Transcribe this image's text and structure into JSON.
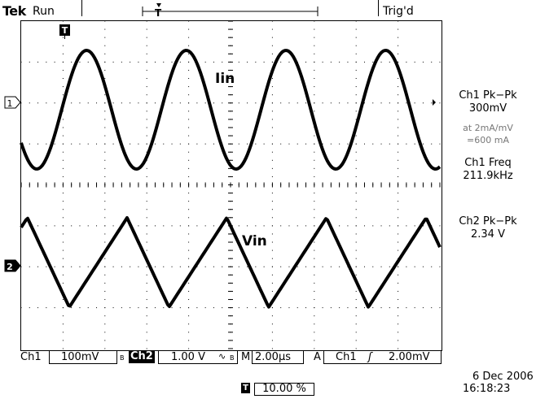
{
  "header": {
    "brand": "Tek",
    "run_state": "Run",
    "trigger_state": "Trig'd"
  },
  "right_panel": {
    "ch1_meas_label": "Ch1 Pk−Pk",
    "ch1_meas_value": "300mV",
    "scale_note_1": "at 2mA/mV",
    "scale_note_2": "=600 mA",
    "ch1_freq_label": "Ch1 Freq",
    "ch1_freq_value": "211.9kHz",
    "ch2_meas_label": "Ch2 Pk−Pk",
    "ch2_meas_value": "2.34 V"
  },
  "bottom_bar": {
    "ch1_label": "Ch1",
    "ch1_scale": "100mV",
    "ch1_bw": "B",
    "ch2_label": "Ch2",
    "ch2_scale": "1.00 V",
    "ch2_bw": "B",
    "m_label": "M",
    "timebase": "2.00µs",
    "trig_source_prefix": "A",
    "trig_channel": "Ch1",
    "trig_slope": "ʃ",
    "trig_level": "2.00mV",
    "trigger_position": "10.00 %",
    "date": "6 Dec  2006",
    "time": "16:18:23"
  },
  "chart_data": {
    "type": "line",
    "grid": "10 x 8 dotted divisions",
    "series": [
      {
        "name": "Iin",
        "shape": "sine",
        "color": "#000000",
        "cycles_on_screen": 4.2,
        "pk_pk": "300mV",
        "frequency": "211.9kHz"
      },
      {
        "name": "Vin",
        "shape": "triangle",
        "color": "#000000",
        "cycles_on_screen": 4.2,
        "pk_pk": "2.34 V"
      }
    ],
    "annotations": [
      "Iin",
      "Vin"
    ],
    "channel_markers": [
      "1",
      "2"
    ],
    "trigger_marker": "T"
  }
}
